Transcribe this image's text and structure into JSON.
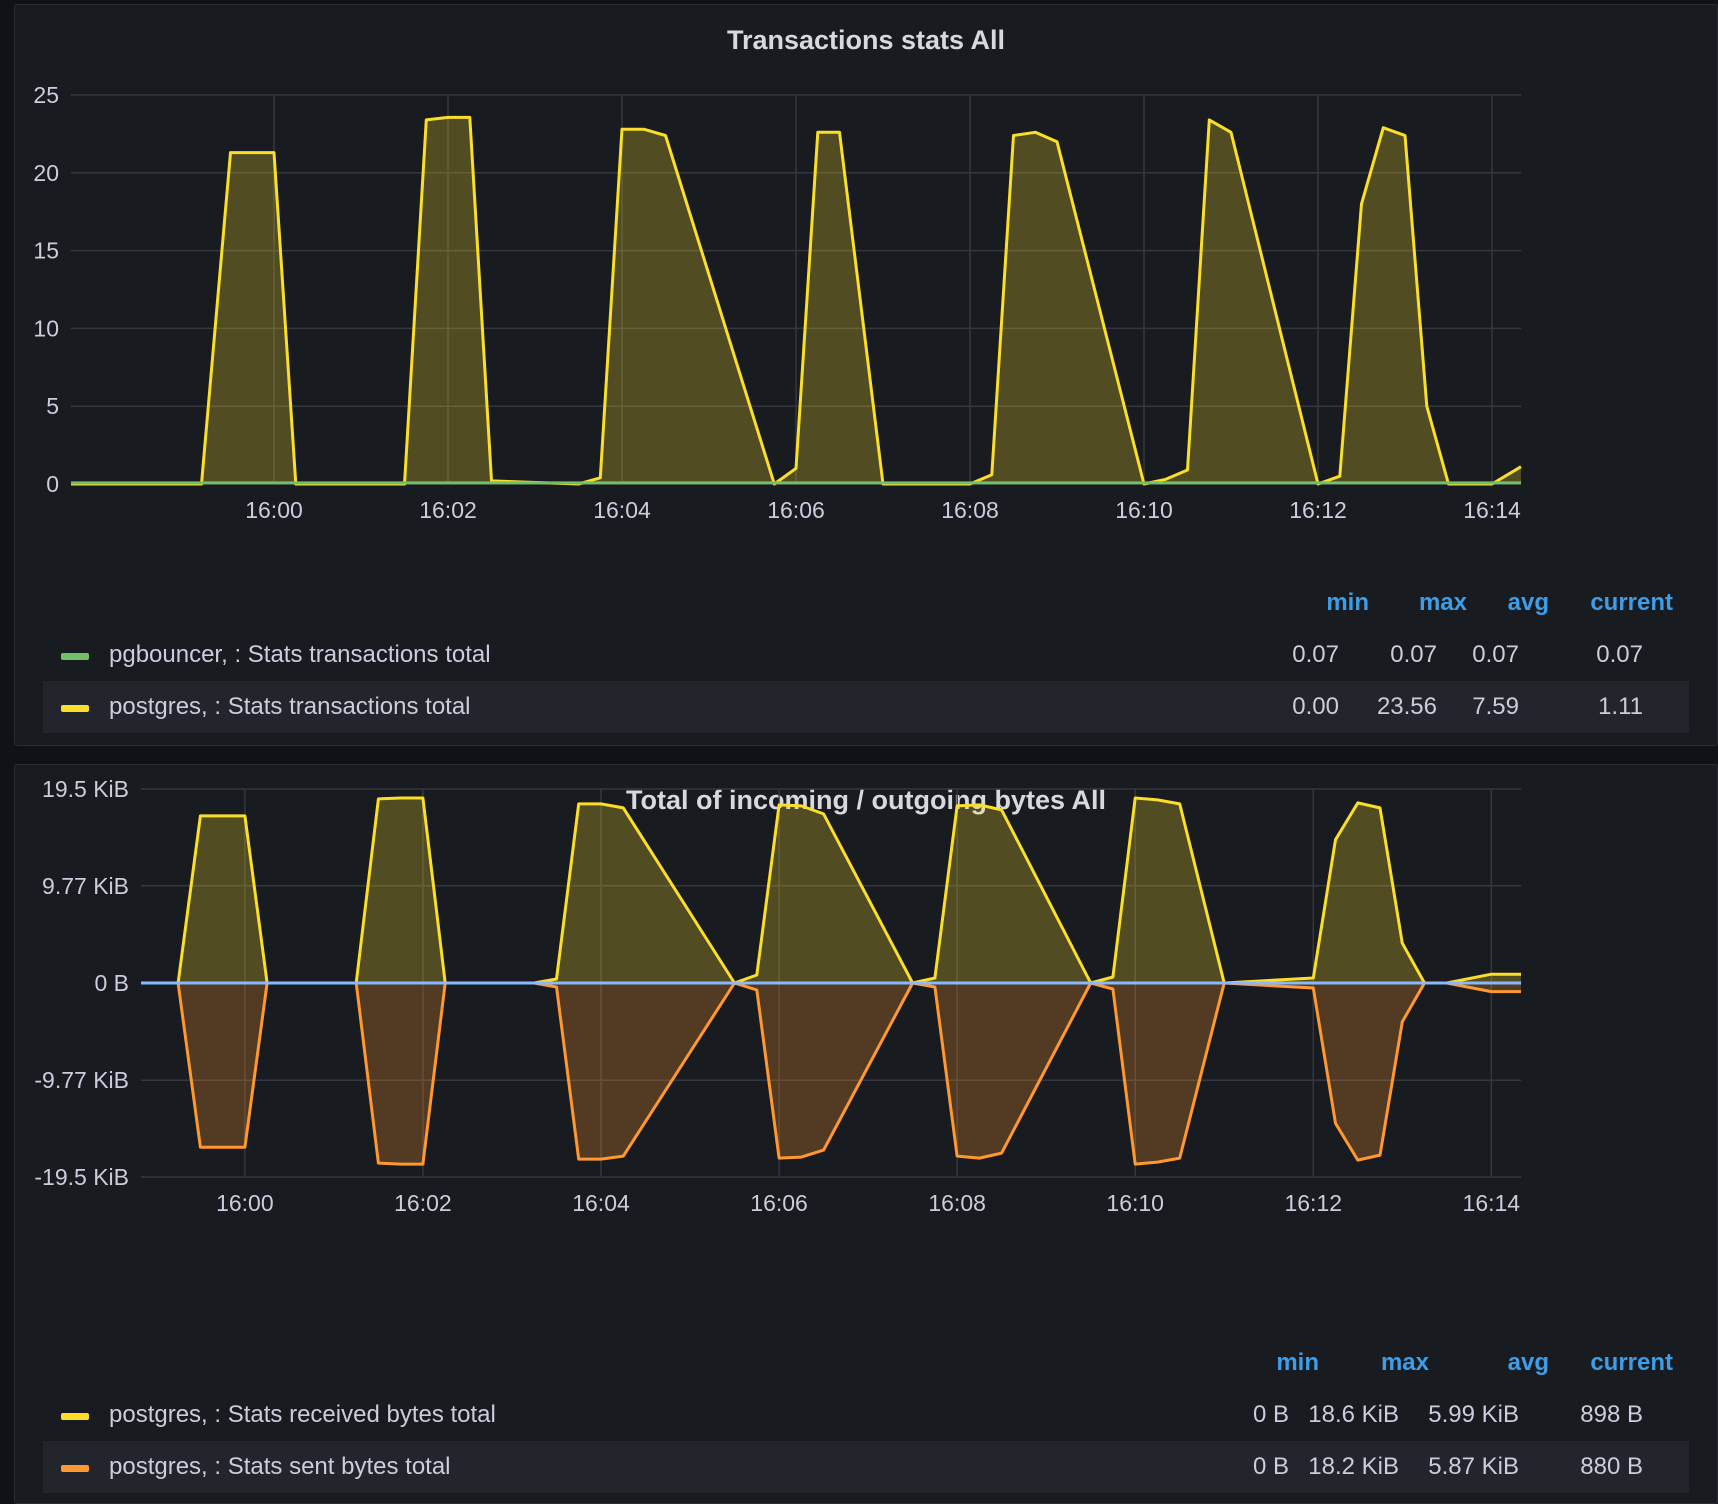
{
  "chart_data": [
    {
      "type": "area",
      "title": "Transactions stats All",
      "x_ticks": [
        "16:00",
        "16:02",
        "16:04",
        "16:06",
        "16:08",
        "16:10",
        "16:12",
        "16:14"
      ],
      "xlim": [
        "15:57:40",
        "16:14:20"
      ],
      "ylim": [
        0,
        25
      ],
      "y_ticks": [
        "0",
        "5",
        "10",
        "15",
        "20",
        "25"
      ],
      "y_tick_values": [
        0,
        5,
        10,
        15,
        20,
        25
      ],
      "grid": true,
      "legend_placement": "bottom",
      "legend_headers": [
        "min",
        "max",
        "avg",
        "current"
      ],
      "series": [
        {
          "name": "pgbouncer, : Stats transactions total",
          "color": "#73bf69",
          "x": [
            "15:57:40",
            "16:14:20"
          ],
          "values": [
            0.07,
            0.07
          ],
          "stats": {
            "min": "0.07",
            "max": "0.07",
            "avg": "0.07",
            "current": "0.07"
          }
        },
        {
          "name": "postgres, : Stats transactions total",
          "color": "#fade2a",
          "x": [
            "15:57:40",
            "15:59:10",
            "15:59:30",
            "16:00",
            "16:00:15",
            "16:01:30",
            "16:01:45",
            "16:02",
            "16:02:15",
            "16:02:30",
            "16:03:30",
            "16:03:45",
            "16:04",
            "16:04:15",
            "16:04:30",
            "16:05:45",
            "16:06",
            "16:06:15",
            "16:06:30",
            "16:07",
            "16:08",
            "16:08:15",
            "16:08:30",
            "16:08:45",
            "16:09",
            "16:10",
            "16:10:15",
            "16:10:30",
            "16:10:45",
            "16:11",
            "16:12",
            "16:12:15",
            "16:12:30",
            "16:12:45",
            "16:13",
            "16:13:15",
            "16:13:30",
            "16:14",
            "16:14:20"
          ],
          "values": [
            0,
            0,
            21.3,
            21.3,
            0,
            0,
            23.4,
            23.56,
            23.56,
            0.2,
            0,
            0.4,
            22.8,
            22.8,
            22.4,
            0,
            1.0,
            22.6,
            22.6,
            0,
            0,
            0.6,
            22.4,
            22.6,
            22.0,
            0,
            0.3,
            0.9,
            23.4,
            22.6,
            0,
            0.5,
            18.0,
            22.9,
            22.4,
            5.0,
            0,
            0,
            1.11
          ]
        }
      ]
    },
    {
      "type": "area",
      "title": "Total of incoming / outgoing bytes All",
      "x_ticks": [
        "16:00",
        "16:02",
        "16:04",
        "16:06",
        "16:08",
        "16:10",
        "16:12",
        "16:14"
      ],
      "xlim": [
        "15:58:50",
        "16:14:20"
      ],
      "ylim": [
        -19.5,
        19.5
      ],
      "y_unit": "KiB",
      "y_ticks": [
        "19.5 KiB",
        "9.77 KiB",
        "0 B",
        "-9.77 KiB",
        "-19.5 KiB"
      ],
      "y_tick_values": [
        19.5,
        9.77,
        0,
        -9.77,
        -19.5
      ],
      "grid": true,
      "legend_placement": "bottom",
      "legend_headers": [
        "min",
        "max",
        "avg",
        "current"
      ],
      "series": [
        {
          "name": "postgres, : Stats received bytes total",
          "color": "#fade2a",
          "x": [
            "15:58:50",
            "15:59:15",
            "15:59:30",
            "16:00",
            "16:00:15",
            "16:01:15",
            "16:01:30",
            "16:01:45",
            "16:02",
            "16:02:15",
            "16:03:15",
            "16:03:30",
            "16:03:45",
            "16:04",
            "16:04:15",
            "16:05:30",
            "16:05:45",
            "16:06",
            "16:06:15",
            "16:06:30",
            "16:07:30",
            "16:07:45",
            "16:08",
            "16:08:15",
            "16:08:30",
            "16:09:30",
            "16:09:45",
            "16:10",
            "16:10:15",
            "16:10:30",
            "16:11",
            "16:12",
            "16:12:15",
            "16:12:30",
            "16:12:45",
            "16:13",
            "16:13:15",
            "16:13:30",
            "16:14",
            "16:14:20"
          ],
          "values": [
            0,
            0,
            16.8,
            16.8,
            0,
            0,
            18.5,
            18.6,
            18.6,
            0,
            0,
            0.4,
            18.0,
            18.0,
            17.6,
            0,
            0.8,
            17.9,
            17.8,
            17.0,
            0,
            0.5,
            17.8,
            17.9,
            17.4,
            0,
            0.6,
            18.6,
            18.4,
            18.0,
            0,
            0.5,
            14.4,
            18.1,
            17.6,
            4.0,
            0,
            0,
            0.88,
            0.88
          ]
        },
        {
          "name": "postgres, : Stats sent bytes total",
          "color": "#ff9830",
          "x": [
            "15:58:50",
            "15:59:15",
            "15:59:30",
            "16:00",
            "16:00:15",
            "16:01:15",
            "16:01:30",
            "16:01:45",
            "16:02",
            "16:02:15",
            "16:03:15",
            "16:03:30",
            "16:03:45",
            "16:04",
            "16:04:15",
            "16:05:30",
            "16:05:45",
            "16:06",
            "16:06:15",
            "16:06:30",
            "16:07:30",
            "16:07:45",
            "16:08",
            "16:08:15",
            "16:08:30",
            "16:09:30",
            "16:09:45",
            "16:10",
            "16:10:15",
            "16:10:30",
            "16:11",
            "16:12",
            "16:12:15",
            "16:12:30",
            "16:12:45",
            "16:13",
            "16:13:15",
            "16:13:30",
            "16:14",
            "16:14:20"
          ],
          "values": [
            0,
            0,
            -16.5,
            -16.5,
            0,
            0,
            -18.1,
            -18.2,
            -18.2,
            0,
            0,
            -0.4,
            -17.7,
            -17.7,
            -17.4,
            0,
            -0.7,
            -17.6,
            -17.5,
            -16.8,
            0,
            -0.4,
            -17.4,
            -17.6,
            -17.1,
            0,
            -0.6,
            -18.2,
            -18.0,
            -17.6,
            0,
            -0.5,
            -14.1,
            -17.8,
            -17.3,
            -3.9,
            0,
            0,
            -0.86,
            -0.86
          ]
        },
        {
          "name": "",
          "color": "#8ab8ff",
          "x": [
            "15:58:50",
            "16:14:20"
          ],
          "values": [
            0,
            0
          ]
        }
      ]
    }
  ],
  "panels": [
    {
      "title": "Transactions stats All",
      "legend": {
        "headers": {
          "min": "min",
          "max": "max",
          "avg": "avg",
          "current": "current"
        },
        "rows": [
          {
            "name": "pgbouncer, : Stats transactions total",
            "color": "#73bf69",
            "min": "0.07",
            "max": "0.07",
            "avg": "0.07",
            "current": "0.07"
          },
          {
            "name": "postgres, : Stats transactions total",
            "color": "#fade2a",
            "min": "0.00",
            "max": "23.56",
            "avg": "7.59",
            "current": "1.11"
          }
        ]
      }
    },
    {
      "title": "Total of incoming / outgoing bytes All",
      "legend": {
        "headers": {
          "min": "min",
          "max": "max",
          "avg": "avg",
          "current": "current"
        },
        "rows": [
          {
            "name": "postgres, : Stats received bytes total",
            "color": "#fade2a",
            "min": "0 B",
            "max": "18.6 KiB",
            "avg": "5.99 KiB",
            "current": "898 B"
          },
          {
            "name": "postgres, : Stats sent bytes total",
            "color": "#ff9830",
            "min": "0 B",
            "max": "18.2 KiB",
            "avg": "5.87 KiB",
            "current": "880 B"
          }
        ]
      }
    }
  ]
}
